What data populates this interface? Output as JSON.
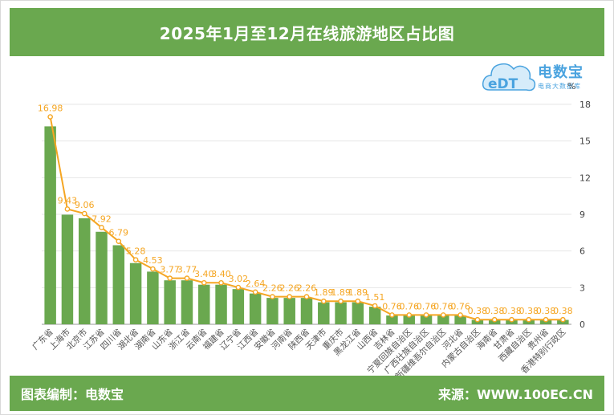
{
  "header": {
    "title": "2025年1月至12月在线旅游地区占比图"
  },
  "logo": {
    "name": "电数宝",
    "sub": "电商大数据库",
    "mark": "eDT"
  },
  "footer": {
    "left": "图表编制：电数宝",
    "right": "来源：WWW.100EC.CN"
  },
  "colors": {
    "bar": "#6aa84f",
    "line": "#f5a623",
    "header": "#6aa84f",
    "label": "#f5a623"
  },
  "chart_data": {
    "type": "bar",
    "title": "",
    "ylabel": "%",
    "ylim": [
      0,
      18
    ],
    "yticks": [
      0,
      3,
      6,
      9,
      12,
      15,
      18
    ],
    "y_axis_side": "right",
    "grid": true,
    "categories": [
      "广东省",
      "上海市",
      "北京市",
      "江苏省",
      "四川省",
      "湖北省",
      "湖南省",
      "山东省",
      "浙江省",
      "云南省",
      "福建省",
      "辽宁省",
      "江西省",
      "安徽省",
      "河南省",
      "陕西省",
      "天津市",
      "重庆市",
      "黑龙江省",
      "山西省",
      "吉林省",
      "宁夏回族自治区",
      "广西壮族自治区",
      "新疆维吾尔自治区",
      "河北省",
      "内蒙古自治区",
      "海南省",
      "甘肃省",
      "西藏自治区",
      "贵州省",
      "香港特别行政区"
    ],
    "series": [
      {
        "name": "",
        "type": "bar",
        "values": [
          16.2,
          8.97,
          8.68,
          7.57,
          6.47,
          5.01,
          4.31,
          3.6,
          3.6,
          3.24,
          3.24,
          2.88,
          2.52,
          2.16,
          2.16,
          2.16,
          1.8,
          1.8,
          1.8,
          1.44,
          0.72,
          0.72,
          0.72,
          0.72,
          0.72,
          0.36,
          0.36,
          0.36,
          0.36,
          0.36,
          0.36
        ]
      },
      {
        "name": "",
        "type": "line",
        "values": [
          16.98,
          9.43,
          9.06,
          7.92,
          6.79,
          5.28,
          4.53,
          3.77,
          3.77,
          3.4,
          3.4,
          3.02,
          2.64,
          2.26,
          2.26,
          2.26,
          1.89,
          1.89,
          1.89,
          1.51,
          0.76,
          0.76,
          0.76,
          0.76,
          0.76,
          0.38,
          0.38,
          0.38,
          0.38,
          0.38,
          0.38
        ],
        "labels": [
          "16.98",
          "9.43",
          "9.06",
          "7.92",
          "6.79",
          "5.28",
          "4.53",
          "3.77",
          "3.77",
          "3.40",
          "3.40",
          "3.02",
          "2.64",
          "2.26",
          "2.26",
          "2.26",
          "1.89",
          "1.89",
          "1.89",
          "1.51",
          "0.76",
          "0.76",
          "0.76",
          "0.76",
          "0.76",
          "0.38",
          "0.38",
          "0.38",
          "0.38",
          "0.38",
          "0.38"
        ]
      }
    ]
  }
}
